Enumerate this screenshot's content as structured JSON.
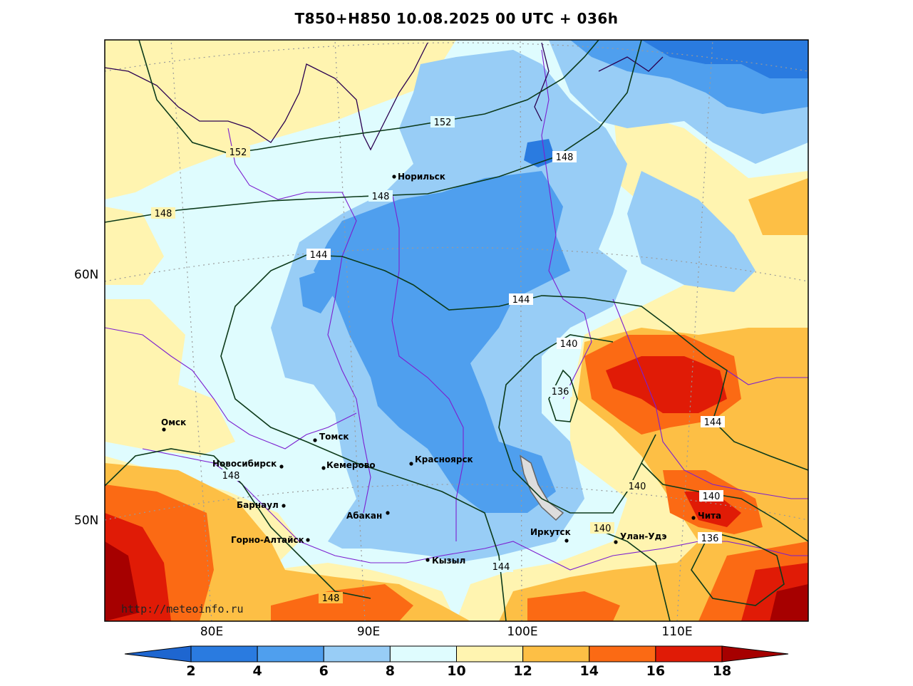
{
  "title": "T850+H850 10.08.2025 00 UTC + 036h",
  "credit": "http://meteoinfo.ru",
  "colors": {
    "c2_4": "#2a7be0",
    "c4_6": "#4f9fee",
    "c6_8": "#98cdf6",
    "c8_10": "#dffcfe",
    "c10_12": "#fff4b0",
    "c12_14": "#fdbf45",
    "c14_16": "#fb6a14",
    "c16_18": "#e01b06",
    "c18p": "#a60000",
    "cb_low": "#1e66d0",
    "isoline": "#0c3a1a",
    "border": "#7c1fd0",
    "lake": "#777777"
  },
  "lat_labels": [
    {
      "id": "lat60",
      "text": "60N"
    },
    {
      "id": "lat50",
      "text": "50N"
    }
  ],
  "lon_labels": [
    {
      "id": "lon80",
      "text": "80E"
    },
    {
      "id": "lon90",
      "text": "90E"
    },
    {
      "id": "lon100",
      "text": "100E"
    },
    {
      "id": "lon110",
      "text": "110E"
    }
  ],
  "cities": [
    {
      "id": "norilsk",
      "name": "Норильск"
    },
    {
      "id": "omsk",
      "name": "Омск"
    },
    {
      "id": "tomsk",
      "name": "Томск"
    },
    {
      "id": "novosibirsk",
      "name": "Новосибирск"
    },
    {
      "id": "kemerovo",
      "name": "Кемерово"
    },
    {
      "id": "krasnoyarsk",
      "name": "Красноярск"
    },
    {
      "id": "barnaul",
      "name": "Барнаул"
    },
    {
      "id": "abakan",
      "name": "Абакан"
    },
    {
      "id": "gorno",
      "name": "Горно-Алтайск"
    },
    {
      "id": "kyzyl",
      "name": "Кызыл"
    },
    {
      "id": "irkutsk",
      "name": "Иркутск"
    },
    {
      "id": "ulanude",
      "name": "Улан-Удэ"
    },
    {
      "id": "chita",
      "name": "Чита"
    }
  ],
  "isolines": [
    {
      "id": "i152a",
      "value": "152"
    },
    {
      "id": "i152b",
      "value": "152"
    },
    {
      "id": "i148a",
      "value": "148"
    },
    {
      "id": "i148b",
      "value": "148"
    },
    {
      "id": "i148c",
      "value": "148"
    },
    {
      "id": "i148d",
      "value": "148"
    },
    {
      "id": "i148e",
      "value": "148"
    },
    {
      "id": "i144a",
      "value": "144"
    },
    {
      "id": "i144b",
      "value": "144"
    },
    {
      "id": "i144c",
      "value": "144"
    },
    {
      "id": "i144d",
      "value": "144"
    },
    {
      "id": "i140a",
      "value": "140"
    },
    {
      "id": "i140b",
      "value": "140"
    },
    {
      "id": "i140c",
      "value": "140"
    },
    {
      "id": "i140d",
      "value": "140"
    },
    {
      "id": "i136a",
      "value": "136"
    },
    {
      "id": "i136b",
      "value": "136"
    }
  ],
  "colorbar": {
    "ticks": [
      "2",
      "4",
      "6",
      "8",
      "10",
      "12",
      "14",
      "16",
      "18"
    ],
    "bins": [
      "cb_low",
      "c2_4",
      "c4_6",
      "c6_8",
      "c8_10",
      "c10_12",
      "c12_14",
      "c14_16",
      "c16_18",
      "c18p"
    ]
  }
}
